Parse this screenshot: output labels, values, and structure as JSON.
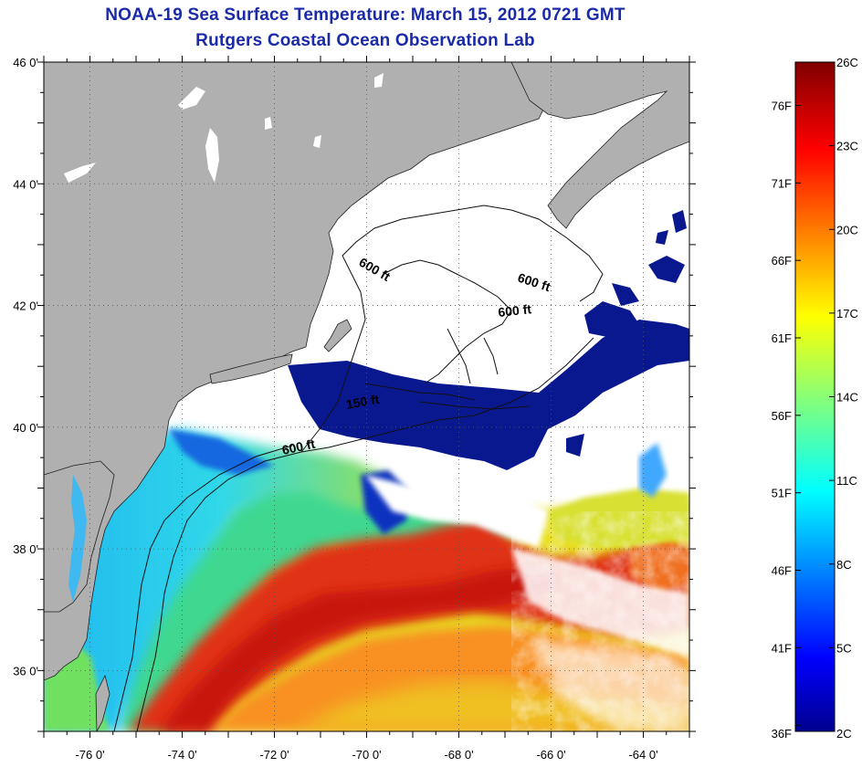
{
  "title": "NOAA-19 Sea Surface Temperature:  March 15, 2012 0721 GMT",
  "subtitle": "Rutgers Coastal Ocean Observation Lab",
  "map": {
    "lon_range": [
      -77,
      -63
    ],
    "lat_range": [
      35,
      46
    ],
    "lon_ticks": [
      {
        "value": -76,
        "label": "-76 0'"
      },
      {
        "value": -74,
        "label": "-74 0'"
      },
      {
        "value": -72,
        "label": "-72 0'"
      },
      {
        "value": -70,
        "label": "-70 0'"
      },
      {
        "value": -68,
        "label": "-68 0'"
      },
      {
        "value": -66,
        "label": "-66 0'"
      },
      {
        "value": -64,
        "label": "-64 0'"
      }
    ],
    "lat_ticks": [
      {
        "value": 46,
        "label": "46 0'"
      },
      {
        "value": 44,
        "label": "44 0'"
      },
      {
        "value": 42,
        "label": "42 0'"
      },
      {
        "value": 40,
        "label": "40 0'"
      },
      {
        "value": 38,
        "label": "38 0'"
      },
      {
        "value": 36,
        "label": "36 0'"
      }
    ],
    "grid": "dotted",
    "land_color": "#b0b0b0",
    "cloud_color": "#ffffff",
    "contour_labels": [
      "600 ft",
      "600 ft",
      "600 ft",
      "150 ft",
      "600 ft"
    ]
  },
  "colorbar": {
    "colormap": "jet",
    "min_c": 2,
    "max_c": 26,
    "celsius_labels": [
      "26C",
      "23C",
      "20C",
      "17C",
      "14C",
      "11C",
      "8C",
      "5C",
      "2C"
    ],
    "fahrenheit_labels": [
      "76F",
      "71F",
      "66F",
      "61F",
      "56F",
      "51F",
      "46F",
      "41F",
      "36F"
    ]
  }
}
